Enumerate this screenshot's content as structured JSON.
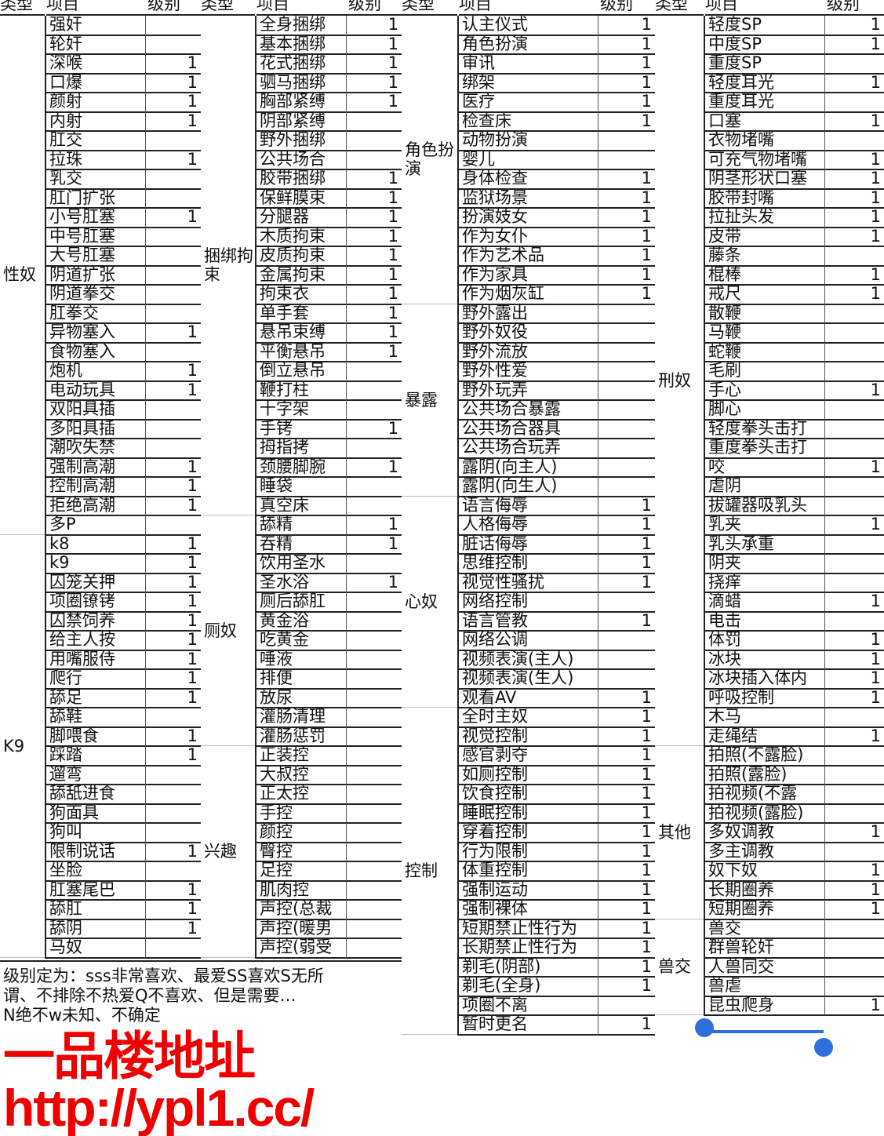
{
  "headers": [
    "类型",
    "项目",
    "级别"
  ],
  "blocks": [
    {
      "groups": [
        {
          "type": "性奴",
          "items": [
            [
              "强奸",
              ""
            ],
            [
              "轮奸",
              ""
            ],
            [
              "深喉",
              "1"
            ],
            [
              "口爆",
              "1"
            ],
            [
              "颜射",
              "1"
            ],
            [
              "内射",
              "1"
            ],
            [
              "肛交",
              ""
            ],
            [
              "拉珠",
              "1"
            ],
            [
              "乳交",
              ""
            ],
            [
              "肛门扩张",
              ""
            ],
            [
              "小号肛塞",
              "1"
            ],
            [
              "中号肛塞",
              ""
            ],
            [
              "大号肛塞",
              ""
            ],
            [
              "阴道扩张",
              ""
            ],
            [
              "阴道拳交",
              ""
            ],
            [
              "肛拳交",
              ""
            ],
            [
              "异物塞入",
              "1"
            ],
            [
              "食物塞入",
              ""
            ],
            [
              "炮机",
              "1"
            ],
            [
              "电动玩具",
              "1"
            ],
            [
              "双阳具插",
              ""
            ],
            [
              "多阳具插",
              ""
            ],
            [
              "潮吹失禁",
              ""
            ],
            [
              "强制高潮",
              "1"
            ],
            [
              "控制高潮",
              "1"
            ],
            [
              "拒绝高潮",
              "1"
            ],
            [
              "多P",
              ""
            ]
          ]
        },
        {
          "type": "K9",
          "items": [
            [
              "k8",
              "1"
            ],
            [
              "k9",
              "1"
            ],
            [
              "囚笼关押",
              "1"
            ],
            [
              "项圈镣铐",
              "1"
            ],
            [
              "囚禁饲养",
              "1"
            ],
            [
              "给主人按",
              "1"
            ],
            [
              "用嘴服侍",
              "1"
            ],
            [
              "爬行",
              "1"
            ],
            [
              "舔足",
              "1"
            ],
            [
              "舔鞋",
              ""
            ],
            [
              "脚喂食",
              "1"
            ],
            [
              "踩踏",
              "1"
            ],
            [
              "遛弯",
              ""
            ],
            [
              "舔舐进食",
              ""
            ],
            [
              "狗面具",
              ""
            ],
            [
              "狗叫",
              ""
            ],
            [
              "限制说话",
              "1"
            ],
            [
              "坐脸",
              ""
            ],
            [
              "肛塞尾巴",
              "1"
            ],
            [
              "舔肛",
              "1"
            ],
            [
              "舔阴",
              "1"
            ],
            [
              "马奴",
              ""
            ]
          ]
        }
      ]
    },
    {
      "groups": [
        {
          "type": "捆绑拘束",
          "items": [
            [
              "全身捆绑",
              "1"
            ],
            [
              "基本捆绑",
              "1"
            ],
            [
              "花式捆绑",
              "1"
            ],
            [
              "驷马捆绑",
              "1"
            ],
            [
              "胸部紧缚",
              "1"
            ],
            [
              "阴部紧缚",
              ""
            ],
            [
              "野外捆绑",
              ""
            ],
            [
              "公共场合",
              ""
            ],
            [
              "胶带捆绑",
              "1"
            ],
            [
              "保鲜膜束",
              "1"
            ],
            [
              "分腿器",
              "1"
            ],
            [
              "木质拘束",
              "1"
            ],
            [
              "皮质拘束",
              "1"
            ],
            [
              "金属拘束",
              "1"
            ],
            [
              "拘束衣",
              "1"
            ],
            [
              "单手套",
              "1"
            ],
            [
              "悬吊束缚",
              "1"
            ],
            [
              "平衡悬吊",
              "1"
            ],
            [
              "倒立悬吊",
              ""
            ],
            [
              "鞭打柱",
              ""
            ],
            [
              "十字架",
              ""
            ],
            [
              "手铐",
              "1"
            ],
            [
              "拇指拷",
              ""
            ],
            [
              "颈腰脚腕",
              "1"
            ],
            [
              "睡袋",
              ""
            ],
            [
              "真空床",
              ""
            ]
          ]
        },
        {
          "type": "厕奴",
          "items": [
            [
              "舔精",
              "1"
            ],
            [
              "吞精",
              "1"
            ],
            [
              "饮用圣水",
              ""
            ],
            [
              "圣水浴",
              "1"
            ],
            [
              "厕后舔肛",
              ""
            ],
            [
              "黄金浴",
              ""
            ],
            [
              "吃黄金",
              ""
            ],
            [
              "唾液",
              ""
            ],
            [
              "排便",
              ""
            ],
            [
              "放尿",
              ""
            ],
            [
              "灌肠清理",
              ""
            ],
            [
              "灌肠惩罚",
              ""
            ]
          ]
        },
        {
          "type": "兴趣",
          "items": [
            [
              "正装控",
              ""
            ],
            [
              "大叔控",
              ""
            ],
            [
              "正太控",
              ""
            ],
            [
              "手控",
              ""
            ],
            [
              "颜控",
              ""
            ],
            [
              "臀控",
              ""
            ],
            [
              "足控",
              ""
            ],
            [
              "肌肉控",
              ""
            ],
            [
              "声控(总裁",
              ""
            ],
            [
              "声控(暖男",
              ""
            ],
            [
              "声控(弱受",
              ""
            ]
          ]
        }
      ]
    },
    {
      "groups": [
        {
          "type": "角色扮演",
          "items": [
            [
              "认主仪式",
              "1"
            ],
            [
              "角色扮演",
              "1"
            ],
            [
              "审讯",
              "1"
            ],
            [
              "绑架",
              "1"
            ],
            [
              "医疗",
              "1"
            ],
            [
              "检查床",
              "1"
            ],
            [
              "动物扮演",
              ""
            ],
            [
              "婴儿",
              ""
            ],
            [
              "身体检查",
              "1"
            ],
            [
              "监狱场景",
              "1"
            ],
            [
              "扮演妓女",
              "1"
            ],
            [
              "作为女仆",
              "1"
            ],
            [
              "作为艺术品",
              "1"
            ],
            [
              "作为家具",
              "1"
            ],
            [
              "作为烟灰缸",
              "1"
            ]
          ]
        },
        {
          "type": "暴露",
          "items": [
            [
              "野外露出",
              ""
            ],
            [
              "野外奴役",
              ""
            ],
            [
              "野外流放",
              ""
            ],
            [
              "野外性爱",
              ""
            ],
            [
              "野外玩弄",
              ""
            ],
            [
              "公共场合暴露",
              ""
            ],
            [
              "公共场合器具",
              ""
            ],
            [
              "公共场合玩弄",
              ""
            ],
            [
              "露阴(向主人)",
              ""
            ],
            [
              "露阴(向生人)",
              ""
            ]
          ]
        },
        {
          "type": "心奴",
          "items": [
            [
              "语言侮辱",
              "1"
            ],
            [
              "人格侮辱",
              "1"
            ],
            [
              "脏话侮辱",
              "1"
            ],
            [
              "思维控制",
              "1"
            ],
            [
              "视觉性骚扰",
              "1"
            ],
            [
              "网络控制",
              ""
            ],
            [
              "语言管教",
              "1"
            ],
            [
              "网络公调",
              ""
            ],
            [
              "视频表演(主人)",
              ""
            ],
            [
              "视频表演(生人)",
              ""
            ],
            [
              "观看AV",
              "1"
            ]
          ]
        },
        {
          "type": "控制",
          "items": [
            [
              "全时主奴",
              "1"
            ],
            [
              "视觉控制",
              "1"
            ],
            [
              "感官剥夺",
              "1"
            ],
            [
              "如厕控制",
              "1"
            ],
            [
              "饮食控制",
              "1"
            ],
            [
              "睡眠控制",
              "1"
            ],
            [
              "穿着控制",
              "1"
            ],
            [
              "行为限制",
              "1"
            ],
            [
              "体重控制",
              "1"
            ],
            [
              "强制运动",
              "1"
            ],
            [
              "强制裸体",
              "1"
            ],
            [
              "短期禁止性行为",
              "1"
            ],
            [
              "长期禁止性行为",
              "1"
            ],
            [
              "剃毛(阴部)",
              "1"
            ],
            [
              "剃毛(全身)",
              "1"
            ],
            [
              "项圈不离",
              ""
            ],
            [
              "暂时更名",
              "1"
            ]
          ]
        }
      ]
    },
    {
      "groups": [
        {
          "type": "刑奴",
          "items": [
            [
              "轻度SP",
              "1"
            ],
            [
              "中度SP",
              "1"
            ],
            [
              "重度SP",
              ""
            ],
            [
              "轻度耳光",
              "1"
            ],
            [
              "重度耳光",
              ""
            ],
            [
              "口塞",
              "1"
            ],
            [
              "衣物堵嘴",
              ""
            ],
            [
              "可充气物堵嘴",
              "1"
            ],
            [
              "阴茎形状口塞",
              "1"
            ],
            [
              "胶带封嘴",
              "1"
            ],
            [
              "拉扯头发",
              "1"
            ],
            [
              "皮带",
              "1"
            ],
            [
              "藤条",
              ""
            ],
            [
              "棍棒",
              "1"
            ],
            [
              "戒尺",
              "1"
            ],
            [
              "散鞭",
              ""
            ],
            [
              "马鞭",
              ""
            ],
            [
              "蛇鞭",
              ""
            ],
            [
              "毛刷",
              ""
            ],
            [
              "手心",
              "1"
            ],
            [
              "脚心",
              ""
            ],
            [
              "轻度拳头击打",
              ""
            ],
            [
              "重度拳头击打",
              ""
            ],
            [
              "咬",
              "1"
            ],
            [
              "虐阴",
              ""
            ],
            [
              "拔罐器吸乳头",
              ""
            ],
            [
              "乳夹",
              "1"
            ],
            [
              "乳头承重",
              ""
            ],
            [
              "阴夹",
              ""
            ],
            [
              "挠痒",
              ""
            ],
            [
              "滴蜡",
              "1"
            ],
            [
              "电击",
              ""
            ],
            [
              "体罚",
              "1"
            ],
            [
              "冰块",
              "1"
            ],
            [
              "冰块插入体内",
              "1"
            ],
            [
              "呼吸控制",
              "1"
            ],
            [
              "木马",
              ""
            ],
            [
              "走绳结",
              "1"
            ]
          ]
        },
        {
          "type": "其他",
          "items": [
            [
              "拍照(不露脸)",
              ""
            ],
            [
              "拍照(露脸)",
              ""
            ],
            [
              "拍视频(不露",
              ""
            ],
            [
              "拍视频(露脸)",
              ""
            ],
            [
              "多奴调教",
              "1"
            ],
            [
              "多主调教",
              ""
            ],
            [
              "奴下奴",
              "1"
            ],
            [
              "长期圈养",
              "1"
            ],
            [
              "短期圈养",
              "1"
            ]
          ]
        },
        {
          "type": "兽交",
          "items": [
            [
              "兽交",
              ""
            ],
            [
              "群兽轮奸",
              ""
            ],
            [
              "人兽同交",
              ""
            ],
            [
              "兽虐",
              ""
            ],
            [
              "昆虫爬身",
              "1"
            ]
          ]
        }
      ]
    }
  ],
  "note": {
    "line1": "级别定为：sss非常喜欢、最爱SS喜欢S无所",
    "line2": "谓、不排除不热爱Q不喜欢、但是需要…",
    "line3": "N绝不w未知、不确定"
  },
  "watermark": "一品楼地址http://ypl1.cc/",
  "colors": {
    "watermark": "#e00000",
    "selection": "#2f6fdc"
  }
}
